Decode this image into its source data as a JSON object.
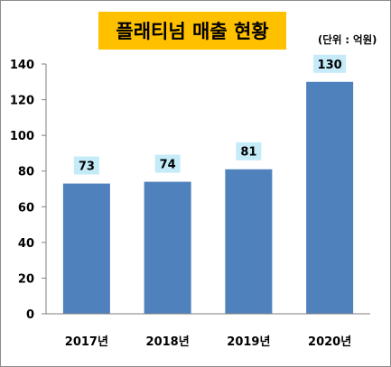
{
  "title": "플래티넘 매출 현황",
  "unit_note": "(단위 : 억원)",
  "colors": {
    "bar": "#4f81bd",
    "label_bg": "#c5ebf9",
    "title_bg": "#ffc000",
    "axis": "#7f7f7f"
  },
  "chart_data": {
    "type": "bar",
    "title": "플래티넘 매출 현황",
    "categories": [
      "2017년",
      "2018년",
      "2019년",
      "2020년"
    ],
    "values": [
      73,
      74,
      81,
      130
    ],
    "data_labels": [
      "73",
      "74",
      "81",
      "130"
    ],
    "ylim": [
      0,
      140
    ],
    "y_ticks": [
      "0",
      "20",
      "40",
      "60",
      "80",
      "100",
      "120",
      "140"
    ],
    "grid": false,
    "legend": "none",
    "xlabel": "",
    "ylabel": ""
  }
}
